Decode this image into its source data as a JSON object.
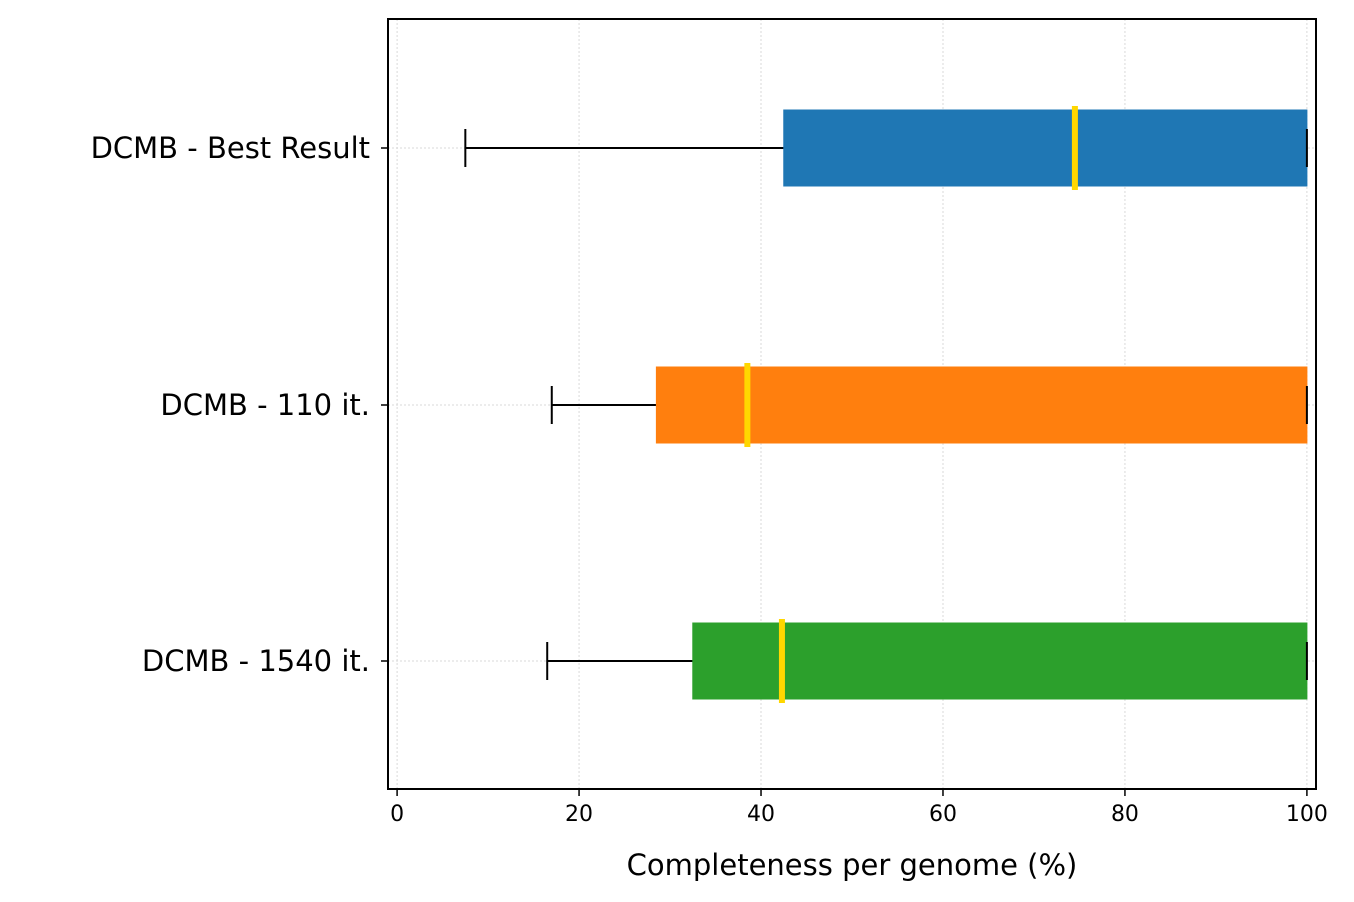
{
  "chart_data": {
    "type": "boxplot-horizontal",
    "xlabel": "Completeness per genome (%)",
    "ylabel": "",
    "xlim": [
      -1,
      101
    ],
    "xticks": [
      0,
      20,
      40,
      60,
      80,
      100
    ],
    "xtick_labels": [
      "0",
      "20",
      "40",
      "60",
      "80",
      "100"
    ],
    "grid": true,
    "median_color": "#FFD700",
    "categories": [
      "DCMB - Best Result",
      "DCMB - 110 it.",
      "DCMB - 1540 it."
    ],
    "boxes": [
      {
        "label": "DCMB - Best Result",
        "whisker_low": 7.5,
        "q1": 42.5,
        "median": 74.5,
        "q3": 100,
        "whisker_high": 100,
        "color": "#1F77B4"
      },
      {
        "label": "DCMB - 110 it.",
        "whisker_low": 17,
        "q1": 28.5,
        "median": 38.5,
        "q3": 100,
        "whisker_high": 100,
        "color": "#FF7F0E"
      },
      {
        "label": "DCMB - 1540 it.",
        "whisker_low": 16.5,
        "q1": 32.5,
        "median": 42.3,
        "q3": 100,
        "whisker_high": 100,
        "color": "#2CA02C"
      }
    ]
  }
}
